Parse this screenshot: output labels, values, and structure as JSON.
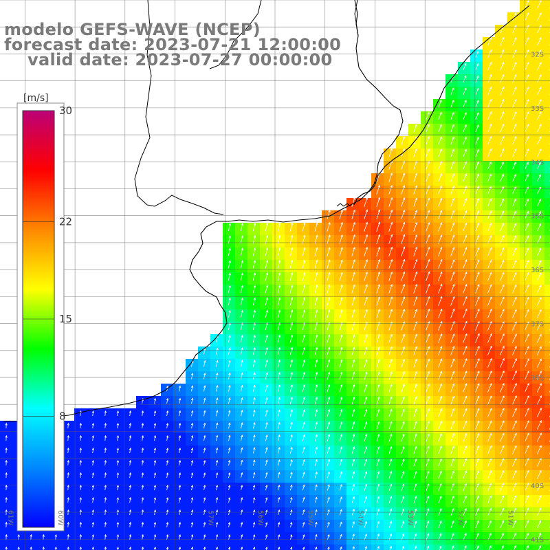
{
  "title": {
    "line1": "modelo GEFS-WAVE (NCEP)",
    "line2": "forecast date: 2023-07-21 12:00:00",
    "line3": "valid date: 2023-07-27 00:00:00"
  },
  "colorbar": {
    "unit": "[m/s]",
    "min": 0,
    "max": 30,
    "ticks": [
      "30",
      "22",
      "15",
      "8"
    ],
    "tick_values": [
      30,
      22,
      15,
      8
    ],
    "colors": [
      "#0000ff",
      "#0088ff",
      "#00ffff",
      "#00ff00",
      "#ffff00",
      "#ff8800",
      "#ff0000",
      "#bb0077"
    ]
  },
  "lat_labels": [
    "32S",
    "33S",
    "34S",
    "35S",
    "36S",
    "37S",
    "38S",
    "40S",
    "41S"
  ],
  "lat_values": [
    32,
    33,
    34,
    35,
    36,
    37,
    38,
    40,
    41
  ],
  "lon_labels": [
    "61W",
    "60W",
    "57W",
    "56W",
    "55W",
    "54W",
    "53W",
    "52W",
    "51W"
  ],
  "lon_values": [
    61,
    60,
    57,
    56,
    55,
    54,
    53,
    52,
    51
  ],
  "map_extent": {
    "lon_min": -61.5,
    "lon_max": -50.5,
    "lat_min": -41.2,
    "lat_max": -31.0
  }
}
